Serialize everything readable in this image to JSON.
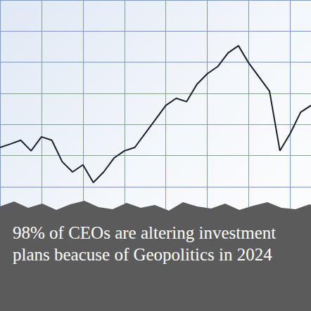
{
  "chart_data": {
    "type": "line",
    "categories": [
      null,
      null,
      null,
      null,
      null,
      null,
      null,
      null,
      null,
      null,
      null,
      null,
      null,
      null,
      null,
      null,
      null,
      null,
      null,
      null,
      null,
      null,
      null,
      null,
      null,
      null,
      null,
      null,
      null,
      null,
      null
    ],
    "values": [
      52.6,
      53.7,
      54.9,
      51.5,
      56,
      54.9,
      48,
      44.7,
      47,
      41.3,
      44.7,
      49.2,
      51.5,
      52.6,
      57.1,
      61.6,
      66.1,
      68.4,
      67.3,
      72.9,
      76.3,
      78.6,
      83,
      85.3,
      79.7,
      75.2,
      70.7,
      51.5,
      57.1,
      63.9,
      66.1
    ],
    "color": "#1a1f2e",
    "ylim": [
      0,
      100
    ],
    "yticks": [
      0,
      10,
      20,
      30,
      40,
      50,
      60,
      70,
      80,
      90,
      100
    ],
    "grid": true,
    "tick_labels": false,
    "annotation": "98% of CEOs are altering investment plans beacuse of Geopolitics in 2024"
  }
}
